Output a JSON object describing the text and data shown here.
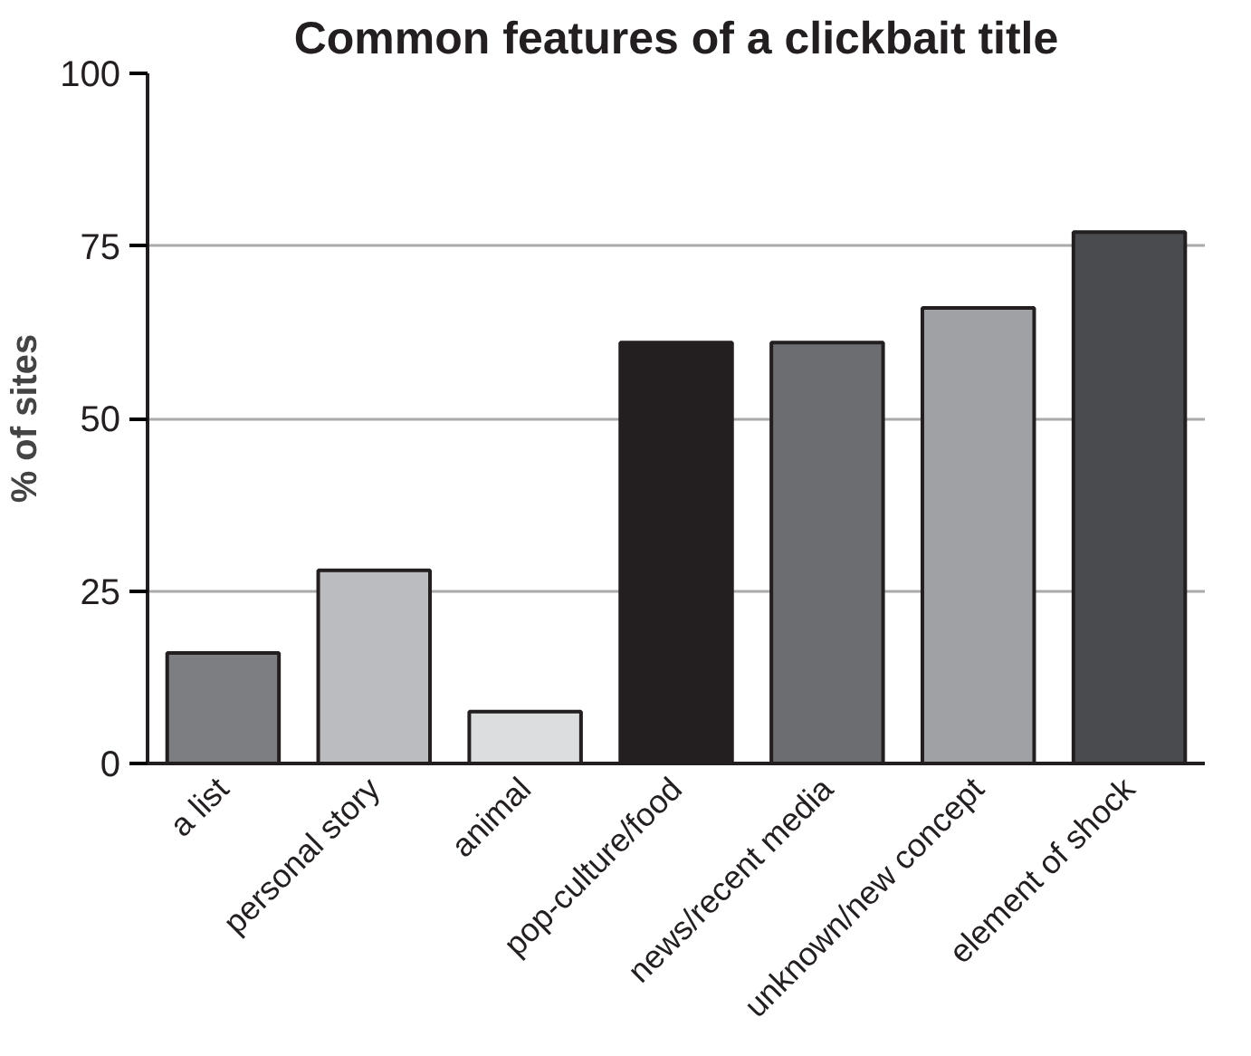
{
  "chart_data": {
    "type": "bar",
    "title": "Common features of a clickbait title",
    "ylabel": "% of sites",
    "categories": [
      "a list",
      "personal story",
      "animal",
      "pop-culture/food",
      "news/recent media",
      "unknown/new concept",
      "element of shock"
    ],
    "values": [
      16,
      28,
      7.5,
      61,
      61,
      66,
      77
    ],
    "colors": [
      "#7d7e82",
      "#bbbcbf",
      "#dcdddf",
      "#231f20",
      "#6c6d71",
      "#a0a1a5",
      "#4a4b4e"
    ],
    "ylim": [
      0,
      100
    ],
    "yticks": [
      0,
      25,
      50,
      75,
      100
    ],
    "grid": "y"
  }
}
